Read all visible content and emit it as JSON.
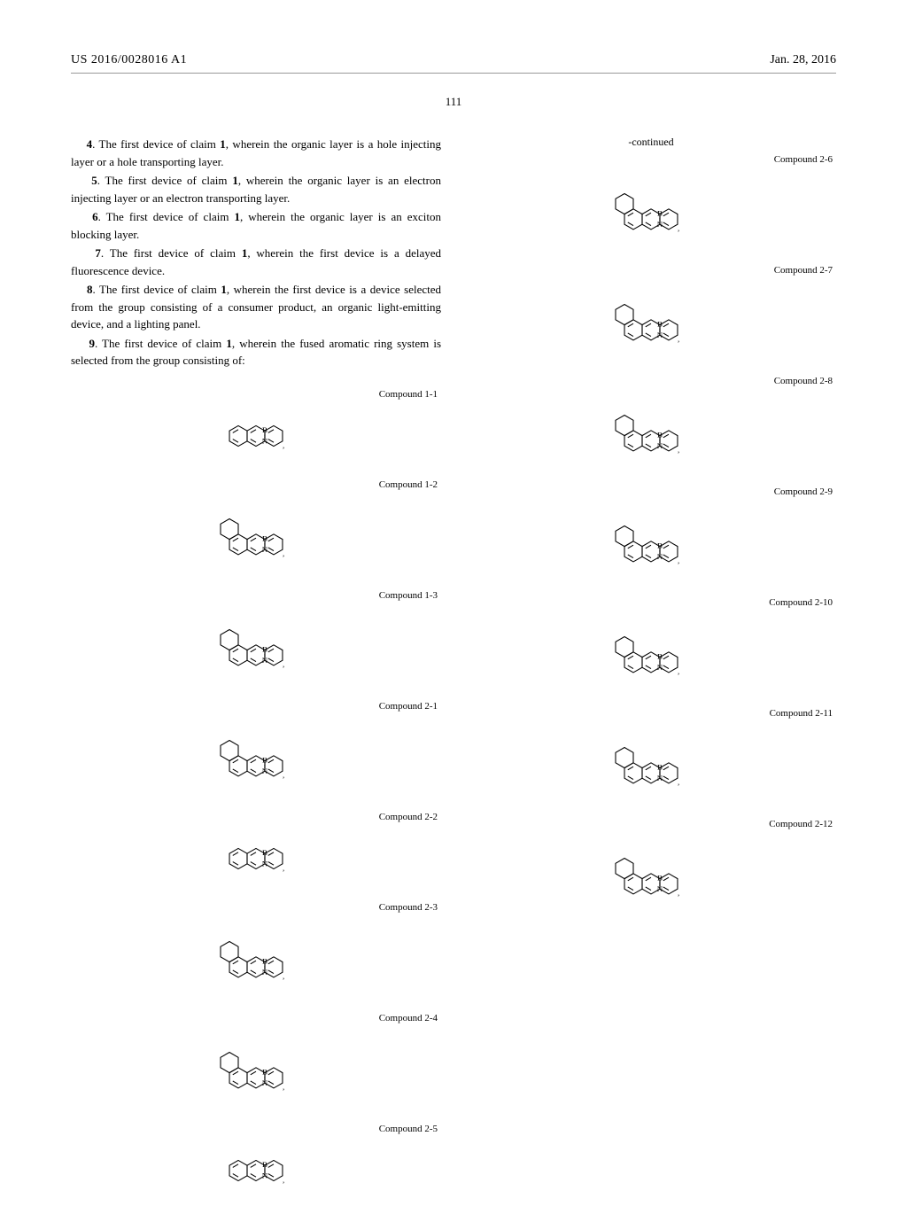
{
  "header": {
    "document_number": "US 2016/0028016 A1",
    "date": "Jan. 28, 2016"
  },
  "page_number": "111",
  "continued_label": "-continued",
  "claims": [
    {
      "num": "4",
      "text": ". The first device of claim ",
      "ref": "1",
      "tail": ", wherein the organic layer is a hole injecting layer or a hole transporting layer."
    },
    {
      "num": "5",
      "text": ". The first device of claim ",
      "ref": "1",
      "tail": ", wherein the organic layer is an electron injecting layer or an electron transporting layer."
    },
    {
      "num": "6",
      "text": ". The first device of claim ",
      "ref": "1",
      "tail": ", wherein the organic layer is an exciton blocking layer."
    },
    {
      "num": "7",
      "text": ". The first device of claim ",
      "ref": "1",
      "tail": ", wherein the first device is a delayed fluorescence device."
    },
    {
      "num": "8",
      "text": ". The first device of claim ",
      "ref": "1",
      "tail": ", wherein the first device is a device selected from the group consisting of a consumer product, an organic light-emitting device, and a lighting panel."
    },
    {
      "num": "9",
      "text": ". The first device of claim ",
      "ref": "1",
      "tail": ", wherein the fused aromatic ring system is selected from the group consisting of:"
    }
  ],
  "left_compounds": [
    {
      "label": "Compound 1-1",
      "tall": false
    },
    {
      "label": "Compound 1-2",
      "tall": true
    },
    {
      "label": "Compound 1-3",
      "tall": true
    },
    {
      "label": "Compound 2-1",
      "tall": true
    },
    {
      "label": "Compound 2-2",
      "tall": false
    },
    {
      "label": "Compound 2-3",
      "tall": true
    },
    {
      "label": "Compound 2-4",
      "tall": true
    },
    {
      "label": "Compound 2-5",
      "tall": false
    }
  ],
  "right_compounds": [
    {
      "label": "Compound 2-6",
      "tall": true
    },
    {
      "label": "Compound 2-7",
      "tall": true
    },
    {
      "label": "Compound 2-8",
      "tall": true
    },
    {
      "label": "Compound 2-9",
      "tall": true
    },
    {
      "label": "Compound 2-10",
      "tall": true
    },
    {
      "label": "Compound 2-11",
      "tall": true
    },
    {
      "label": "Compound 2-12",
      "tall": true
    }
  ],
  "colors": {
    "text": "#000000",
    "rule": "#999999",
    "structure_stroke": "#000000"
  },
  "typography": {
    "body_font": "Times New Roman",
    "body_size_pt": 10,
    "header_size_pt": 11,
    "compound_label_size_pt": 8.5
  },
  "bn_label": {
    "b": "B",
    "n": "N"
  }
}
